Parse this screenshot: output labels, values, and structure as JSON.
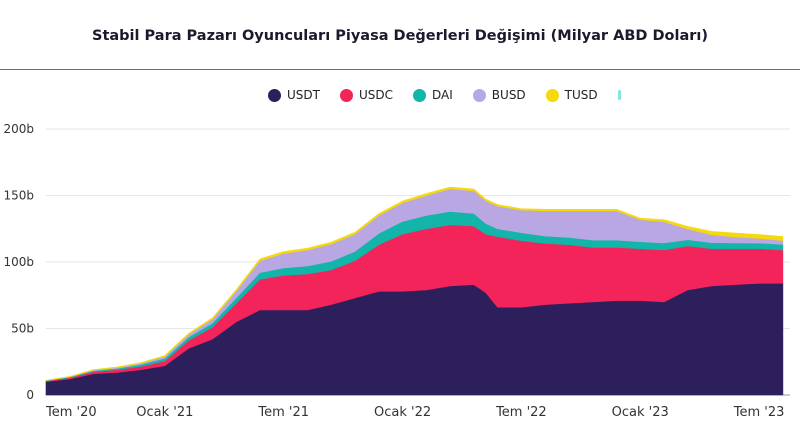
{
  "title": "Stabil Para Pazarı Oyuncuları Piyasa Değerleri Değişimi (Milyar ABD Doları)",
  "colors": {
    "accent_rule": "#d6338f",
    "grid": "#e6e6e6",
    "scroll_indicator": "#7fe8e0"
  },
  "chart_data": {
    "type": "area",
    "stacked": true,
    "title": "Stabil Para Pazarı Oyuncuları Piyasa Değerleri Değişimi (Milyar ABD Doları)",
    "legend_position": "top",
    "grid": true,
    "ylim": [
      0,
      200
    ],
    "y_ticks": [
      "0",
      "50b",
      "100b",
      "150b",
      "200b"
    ],
    "y_tick_values": [
      0,
      50,
      100,
      150,
      200
    ],
    "x_ticks": [
      "Tem '20",
      "Ocak '21",
      "Tem '21",
      "Ocak '22",
      "Tem '22",
      "Ocak '23",
      "Tem '23"
    ],
    "x_tick_values": [
      2020.5,
      2021.0,
      2021.5,
      2022.0,
      2022.5,
      2023.0,
      2023.5
    ],
    "xlim": [
      2020.5,
      2023.63
    ],
    "x": [
      2020.5,
      2020.6,
      2020.7,
      2020.8,
      2020.9,
      2021.0,
      2021.1,
      2021.2,
      2021.3,
      2021.4,
      2021.5,
      2021.6,
      2021.7,
      2021.8,
      2021.9,
      2022.0,
      2022.1,
      2022.2,
      2022.3,
      2022.35,
      2022.4,
      2022.5,
      2022.6,
      2022.7,
      2022.8,
      2022.9,
      2023.0,
      2023.1,
      2023.2,
      2023.3,
      2023.4,
      2023.5,
      2023.6
    ],
    "series": [
      {
        "name": "USDT",
        "color": "#2d1f5c",
        "values": [
          10,
          12,
          16,
          17,
          19,
          22,
          35,
          42,
          55,
          64,
          64,
          64,
          68,
          73,
          78,
          78,
          79,
          82,
          83,
          77,
          66,
          66,
          68,
          69,
          70,
          71,
          71,
          70,
          79,
          82,
          83,
          84,
          84
        ]
      },
      {
        "name": "USDC",
        "color": "#f2245a",
        "values": [
          0.5,
          1,
          1.5,
          2,
          2.5,
          3.5,
          6,
          9,
          14,
          23,
          26,
          27,
          26,
          28,
          35,
          43,
          46,
          46,
          44,
          44,
          53,
          50,
          46,
          44,
          41,
          40,
          39,
          39,
          33,
          28,
          27,
          26,
          25
        ]
      },
      {
        "name": "DAI",
        "color": "#12b5a8",
        "values": [
          0.3,
          0.5,
          0.8,
          1,
          1.5,
          2,
          2.5,
          3,
          4,
          5,
          5.5,
          6,
          6.5,
          7,
          8.5,
          9.5,
          10,
          10,
          9.5,
          8,
          6,
          6,
          5.5,
          5.5,
          5.5,
          5.5,
          5.3,
          5.3,
          4.8,
          4.5,
          4.3,
          4.2,
          4.2
        ]
      },
      {
        "name": "BUSD",
        "color": "#b9a7e3",
        "values": [
          0.1,
          0.2,
          0.4,
          0.6,
          0.8,
          1.5,
          2,
          3,
          5,
          9,
          11,
          12,
          13,
          13,
          13.5,
          14,
          15,
          17,
          17,
          17,
          17,
          17,
          19,
          20,
          22,
          22,
          16.5,
          16,
          8,
          6,
          4.5,
          3.5,
          3
        ]
      },
      {
        "name": "TUSD",
        "color": "#f5d90a",
        "values": [
          0.2,
          0.3,
          0.4,
          0.5,
          0.6,
          0.7,
          0.8,
          1,
          1.2,
          1.3,
          1.4,
          1.4,
          1.4,
          1.4,
          1.4,
          1.4,
          1.4,
          1.4,
          1.3,
          1.3,
          1.2,
          1.1,
          1.1,
          1.1,
          1.1,
          1.1,
          1.1,
          1.5,
          2,
          2.5,
          3,
          3,
          3
        ]
      }
    ]
  }
}
